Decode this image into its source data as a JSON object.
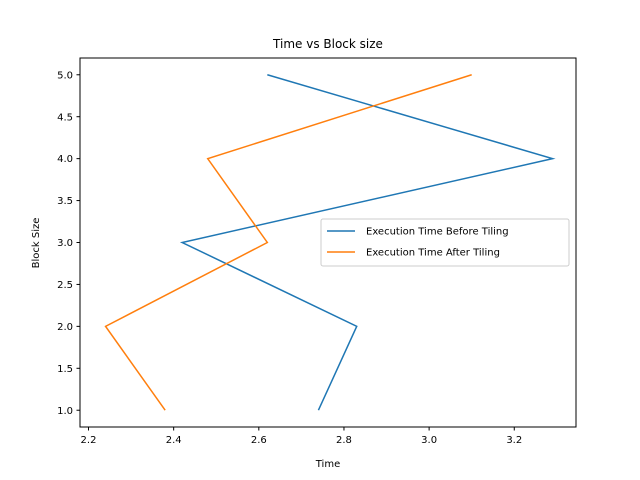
{
  "chart_data": {
    "type": "line",
    "title": "Time vs Block size",
    "xlabel": "Time",
    "ylabel": "Block Size",
    "xlim": [
      2.18,
      3.345
    ],
    "ylim": [
      0.8,
      5.2
    ],
    "xticks": [
      2.2,
      2.4,
      2.6,
      2.8,
      3.0,
      3.2
    ],
    "xtick_labels": [
      "2.2",
      "2.4",
      "2.6",
      "2.8",
      "3.0",
      "3.2"
    ],
    "yticks": [
      1.0,
      1.5,
      2.0,
      2.5,
      3.0,
      3.5,
      4.0,
      4.5,
      5.0
    ],
    "ytick_labels": [
      "1.0",
      "1.5",
      "2.0",
      "2.5",
      "3.0",
      "3.5",
      "4.0",
      "4.5",
      "5.0"
    ],
    "grid": false,
    "legend_position": "center-right",
    "series": [
      {
        "name": "Execution Time Before Tiling",
        "color": "#1f77b4",
        "points": [
          {
            "x": 2.74,
            "y": 1
          },
          {
            "x": 2.83,
            "y": 2
          },
          {
            "x": 2.42,
            "y": 3
          },
          {
            "x": 3.29,
            "y": 4
          },
          {
            "x": 2.62,
            "y": 5
          }
        ]
      },
      {
        "name": "Execution Time After Tiling",
        "color": "#ff7f0e",
        "points": [
          {
            "x": 2.38,
            "y": 1
          },
          {
            "x": 2.24,
            "y": 2
          },
          {
            "x": 2.62,
            "y": 3
          },
          {
            "x": 2.48,
            "y": 4
          },
          {
            "x": 3.1,
            "y": 5
          }
        ]
      }
    ]
  }
}
